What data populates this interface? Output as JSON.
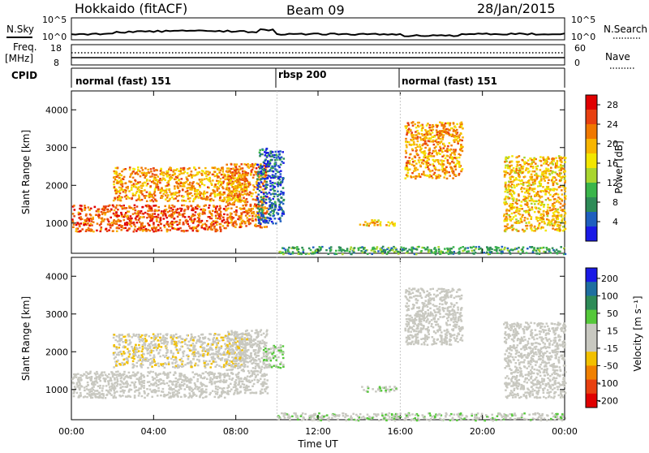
{
  "header": {
    "station": "Hokkaido (fitACF)",
    "beam": "Beam 09",
    "date": "28/Jan/2015"
  },
  "side_labels": {
    "nsky": "N.Sky",
    "nsearch": "N.Search",
    "freq": "Freq.",
    "freq_unit": "[MHz]",
    "nave": "Nave",
    "cpid": "CPID",
    "ten5_left": "10^5",
    "ten0_left": "10^0",
    "ten5_right": "10^5",
    "ten0_right": "10^0",
    "freq_top": "18",
    "freq_bottom": "8",
    "nave_top": "60",
    "nave_bottom": "0"
  },
  "cpid_modes": [
    {
      "start_hour": 0,
      "label": "normal (fast) 151"
    },
    {
      "start_hour": 10,
      "label": "rbsp 200"
    },
    {
      "start_hour": 16,
      "label": "normal (fast) 151"
    }
  ],
  "chart_data": [
    {
      "type": "heatmap",
      "title": "",
      "xlabel": "",
      "ylabel": "Slant Range [km]",
      "xlim": [
        0,
        24
      ],
      "ylim": [
        200,
        4500
      ],
      "x_ticks": [
        0,
        4,
        8,
        12,
        16,
        20,
        24
      ],
      "y_ticks": [
        1000,
        2000,
        3000,
        4000
      ],
      "y_tick_labels": [
        "1000",
        "2000",
        "3000",
        "4000"
      ],
      "colorbar": {
        "label": "Power [dB]",
        "ticks": [
          "4",
          "8",
          "12",
          "16",
          "20",
          "24",
          "28"
        ],
        "colors": [
          "#1a1ae6",
          "#1f5fbf",
          "#2e8b57",
          "#3ab54a",
          "#a9d62f",
          "#f2e600",
          "#f7b500",
          "#f07800",
          "#e84010",
          "#e00000"
        ]
      },
      "regions": [
        {
          "x0": 0.0,
          "x1": 7.5,
          "y0": 800,
          "y1": 1500,
          "value": 26
        },
        {
          "x0": 7.5,
          "x1": 9.5,
          "y0": 900,
          "y1": 2600,
          "value": 24
        },
        {
          "x0": 2.0,
          "x1": 8.5,
          "y0": 1600,
          "y1": 2500,
          "value": 22
        },
        {
          "x0": 9.0,
          "x1": 10.3,
          "y0": 1000,
          "y1": 3000,
          "value": 6
        },
        {
          "x0": 14.0,
          "x1": 15.8,
          "y0": 950,
          "y1": 1100,
          "value": 20
        },
        {
          "x0": 16.2,
          "x1": 19.0,
          "y0": 2200,
          "y1": 3700,
          "value": 22
        },
        {
          "x0": 21.0,
          "x1": 24.0,
          "y0": 800,
          "y1": 2800,
          "value": 20
        },
        {
          "x0": 10.0,
          "x1": 24.0,
          "y0": 200,
          "y1": 400,
          "value": 10
        }
      ]
    },
    {
      "type": "heatmap",
      "title": "",
      "xlabel": "Time UT",
      "ylabel": "Slant Range [km]",
      "xlim": [
        0,
        24
      ],
      "ylim": [
        200,
        4500
      ],
      "x_ticks": [
        0,
        4,
        8,
        12,
        16,
        20,
        24
      ],
      "x_tick_labels": [
        "00:00",
        "04:00",
        "08:00",
        "12:00",
        "16:00",
        "20:00",
        "00:00"
      ],
      "y_ticks": [
        1000,
        2000,
        3000,
        4000
      ],
      "y_tick_labels": [
        "1000",
        "2000",
        "3000",
        "4000"
      ],
      "colorbar": {
        "label": "Velocity [m s⁻¹]",
        "ticks": [
          "200",
          "100",
          "50",
          "15",
          "-15",
          "-50",
          "-100",
          "-200"
        ],
        "colors": [
          "#1a1ae6",
          "#1f6fa0",
          "#2e8b57",
          "#55c83a",
          "#c8c8c0",
          "#c8c8c0",
          "#f2c000",
          "#f08000",
          "#e84010",
          "#e00000"
        ]
      },
      "regions": [
        {
          "x0": 0.0,
          "x1": 7.5,
          "y0": 800,
          "y1": 1500,
          "value": 0
        },
        {
          "x0": 7.5,
          "x1": 9.5,
          "y0": 900,
          "y1": 2600,
          "value": -5
        },
        {
          "x0": 2.0,
          "x1": 8.5,
          "y0": 1600,
          "y1": 2500,
          "value": -30
        },
        {
          "x0": 9.3,
          "x1": 10.3,
          "y0": 1600,
          "y1": 2200,
          "value": 40
        },
        {
          "x0": 14.0,
          "x1": 15.8,
          "y0": 950,
          "y1": 1100,
          "value": 30
        },
        {
          "x0": 16.2,
          "x1": 19.0,
          "y0": 2200,
          "y1": 3700,
          "value": 0
        },
        {
          "x0": 21.0,
          "x1": 24.0,
          "y0": 800,
          "y1": 2800,
          "value": 5
        },
        {
          "x0": 10.0,
          "x1": 24.0,
          "y0": 200,
          "y1": 400,
          "value": 30
        }
      ]
    }
  ]
}
